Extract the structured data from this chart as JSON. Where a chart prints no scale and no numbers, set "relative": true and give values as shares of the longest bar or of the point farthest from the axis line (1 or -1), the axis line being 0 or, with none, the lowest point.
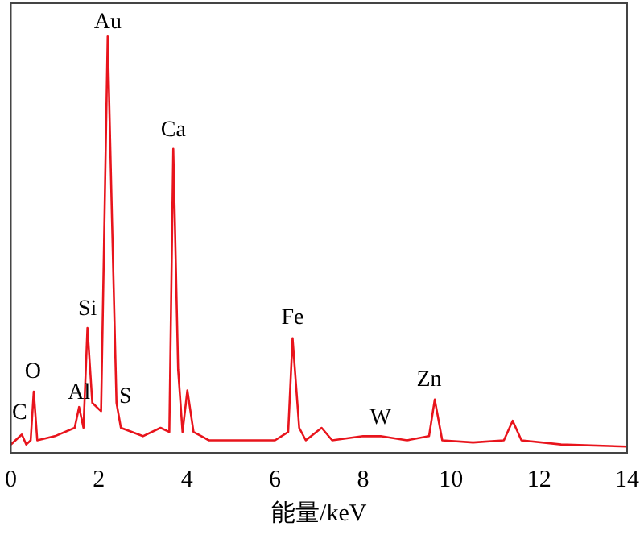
{
  "chart_data": {
    "type": "line",
    "relative": true,
    "xlabel": "能量/keV",
    "xlim": [
      0,
      14
    ],
    "xticks": [
      0,
      2,
      4,
      6,
      8,
      10,
      12,
      14
    ],
    "grid": false,
    "legend": false,
    "marker": "none",
    "series": [
      {
        "color": "#e8141c",
        "x": [
          0,
          0.25,
          0.35,
          0.45,
          0.52,
          0.6,
          1.0,
          1.45,
          1.55,
          1.65,
          1.74,
          1.85,
          2.05,
          2.2,
          2.3,
          2.4,
          2.5,
          3.0,
          3.4,
          3.6,
          3.69,
          3.8,
          3.9,
          4.01,
          4.15,
          4.5,
          5.0,
          6.0,
          6.3,
          6.4,
          6.55,
          6.7,
          7.06,
          7.3,
          8.0,
          8.4,
          9.0,
          9.5,
          9.63,
          9.8,
          10.5,
          11.2,
          11.4,
          11.6,
          12.5,
          14.0
        ],
        "values": [
          0.02,
          0.044,
          0.02,
          0.03,
          0.147,
          0.03,
          0.04,
          0.06,
          0.11,
          0.06,
          0.3,
          0.12,
          0.1,
          1.0,
          0.55,
          0.12,
          0.06,
          0.04,
          0.06,
          0.05,
          0.73,
          0.2,
          0.05,
          0.15,
          0.05,
          0.03,
          0.03,
          0.03,
          0.05,
          0.275,
          0.06,
          0.03,
          0.06,
          0.03,
          0.04,
          0.04,
          0.03,
          0.04,
          0.128,
          0.03,
          0.025,
          0.03,
          0.077,
          0.03,
          0.02,
          0.015
        ]
      }
    ],
    "annotations": [
      {
        "text": "C",
        "x": 0.2,
        "y": 0.06
      },
      {
        "text": "O",
        "x": 0.5,
        "y": 0.16
      },
      {
        "text": "Al",
        "x": 1.55,
        "y": 0.11
      },
      {
        "text": "Si",
        "x": 1.74,
        "y": 0.31
      },
      {
        "text": "Au",
        "x": 2.2,
        "y": 1.0
      },
      {
        "text": "S",
        "x": 2.6,
        "y": 0.1
      },
      {
        "text": "Ca",
        "x": 3.69,
        "y": 0.74
      },
      {
        "text": "Fe",
        "x": 6.4,
        "y": 0.29
      },
      {
        "text": "W",
        "x": 8.4,
        "y": 0.05
      },
      {
        "text": "Zn",
        "x": 9.5,
        "y": 0.14
      }
    ]
  }
}
